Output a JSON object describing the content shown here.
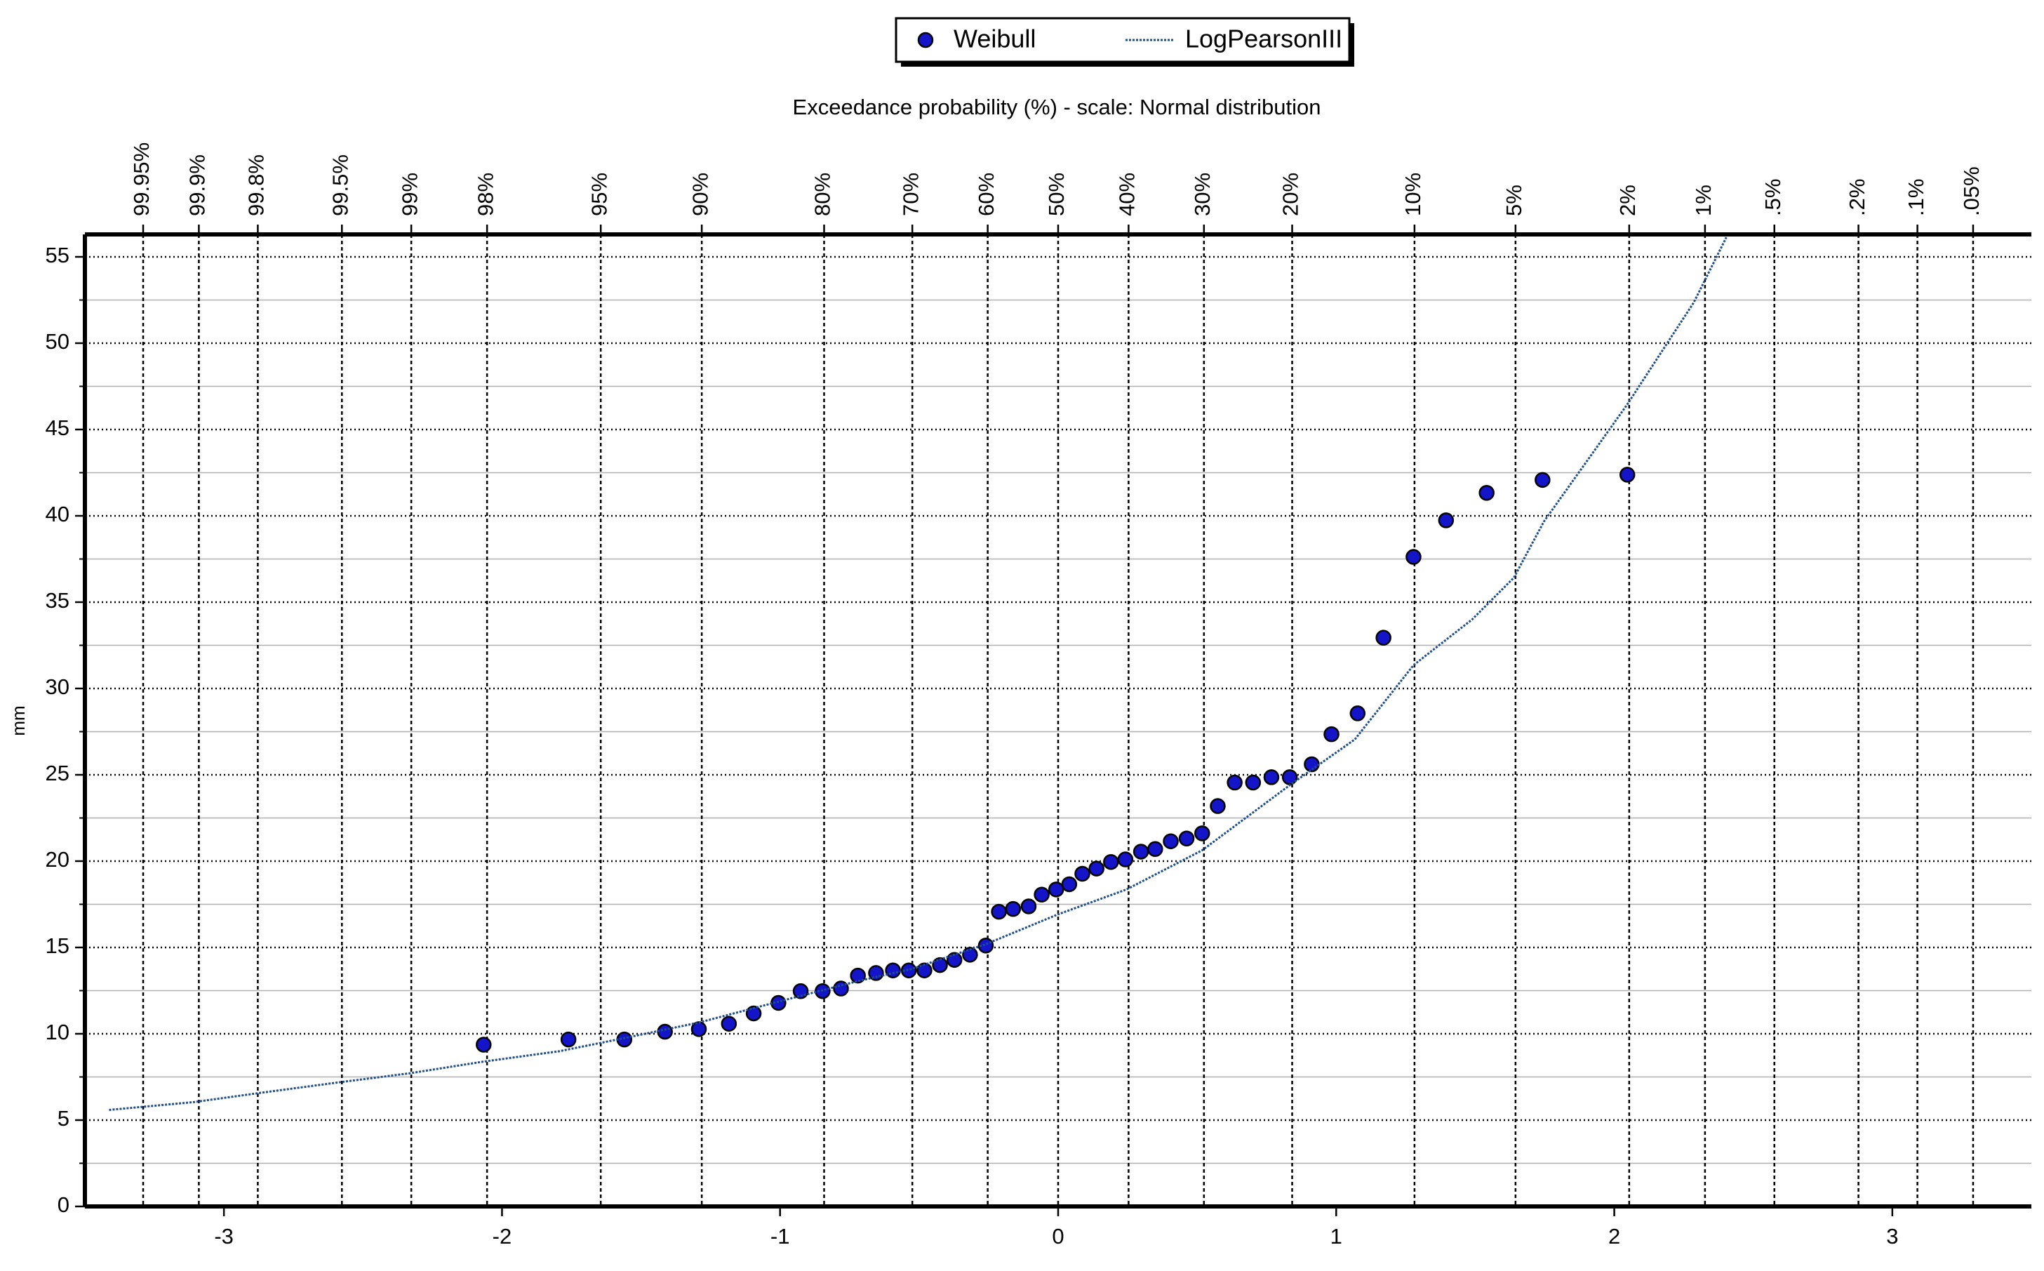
{
  "chart_data": {
    "type": "scatter",
    "x2label": "Exceedance probability  (%) - scale: Normal distribution",
    "ylabel": "mm",
    "xlim": [
      -3.5,
      3.5
    ],
    "ylim": [
      0,
      56.3
    ],
    "xticks": [
      -3,
      -2,
      -1,
      0,
      1,
      2,
      3
    ],
    "yticks": [
      0,
      5,
      10,
      15,
      20,
      25,
      30,
      35,
      40,
      45,
      50,
      55
    ],
    "yminorticks": [
      2.5,
      7.5,
      12.5,
      17.5,
      22.5,
      27.5,
      32.5,
      37.5,
      42.5,
      47.5,
      52.5
    ],
    "x2ticks": [
      {
        "value": -3.2905,
        "label": "99.95%"
      },
      {
        "value": -3.0902,
        "label": "99.9%"
      },
      {
        "value": -2.8782,
        "label": "99.8%"
      },
      {
        "value": -2.5758,
        "label": "99.5%"
      },
      {
        "value": -2.3263,
        "label": "99%"
      },
      {
        "value": -2.0537,
        "label": "98%"
      },
      {
        "value": -1.6449,
        "label": "95%"
      },
      {
        "value": -1.2816,
        "label": "90%"
      },
      {
        "value": -0.8416,
        "label": "80%"
      },
      {
        "value": -0.5244,
        "label": "70%"
      },
      {
        "value": -0.2533,
        "label": "60%"
      },
      {
        "value": 0,
        "label": "50%"
      },
      {
        "value": 0.2533,
        "label": "40%"
      },
      {
        "value": 0.5244,
        "label": "30%"
      },
      {
        "value": 0.8416,
        "label": "20%"
      },
      {
        "value": 1.2816,
        "label": "10%"
      },
      {
        "value": 1.6449,
        "label": "5%"
      },
      {
        "value": 2.0537,
        "label": "2%"
      },
      {
        "value": 2.3263,
        "label": "1%"
      },
      {
        "value": 2.5758,
        "label": ".5%"
      },
      {
        "value": 2.8782,
        "label": ".2%"
      },
      {
        "value": 3.0902,
        "label": ".1%"
      },
      {
        "value": 3.2905,
        "label": ".05%"
      }
    ],
    "grid": true,
    "legend": "top-center",
    "series": [
      {
        "name": "Weibull",
        "type": "scatter",
        "color": "#1414c8",
        "x": [
          -2.066,
          -1.761,
          -1.56,
          -1.414,
          -1.292,
          -1.184,
          -1.095,
          -1.006,
          -0.926,
          -0.847,
          -0.781,
          -0.72,
          -0.655,
          -0.594,
          -0.537,
          -0.481,
          -0.425,
          -0.373,
          -0.317,
          -0.26,
          -0.213,
          -0.162,
          -0.106,
          -0.059,
          -0.007,
          0.04,
          0.087,
          0.138,
          0.19,
          0.242,
          0.298,
          0.349,
          0.405,
          0.462,
          0.518,
          0.574,
          0.635,
          0.701,
          0.767,
          0.833,
          0.912,
          0.983,
          1.077,
          1.17,
          1.278,
          1.395,
          1.541,
          1.742,
          2.047
        ],
        "values": [
          9.37,
          9.67,
          9.67,
          10.12,
          10.27,
          10.58,
          11.18,
          11.79,
          12.47,
          12.47,
          12.62,
          13.37,
          13.52,
          13.67,
          13.67,
          13.67,
          13.98,
          14.28,
          14.58,
          15.11,
          17.07,
          17.23,
          17.38,
          18.06,
          18.36,
          18.66,
          19.27,
          19.57,
          19.95,
          20.1,
          20.55,
          20.7,
          21.15,
          21.31,
          21.61,
          23.19,
          24.55,
          24.55,
          24.86,
          24.86,
          25.61,
          27.35,
          28.56,
          32.94,
          37.62,
          39.74,
          41.33,
          42.08,
          42.38
        ]
      },
      {
        "name": "LogPearsonIII",
        "type": "line",
        "color": "#1f4e8c",
        "x": [
          -3.413,
          -3.11,
          -2.873,
          -2.59,
          -2.333,
          -2.066,
          -1.794,
          -1.56,
          -1.292,
          -1.006,
          -0.715,
          -0.528,
          -0.26,
          0,
          0.246,
          0.518,
          0.833,
          1.067,
          1.278,
          1.489,
          1.639,
          1.747,
          2.047,
          2.286,
          2.403
        ],
        "values": [
          5.59,
          6.04,
          6.57,
          7.18,
          7.71,
          8.39,
          8.99,
          9.75,
          10.65,
          11.86,
          13.07,
          13.75,
          15.19,
          16.92,
          18.36,
          20.63,
          24.4,
          27.05,
          31.35,
          34.0,
          36.42,
          39.67,
          46.46,
          52.36,
          56.13
        ]
      }
    ]
  }
}
